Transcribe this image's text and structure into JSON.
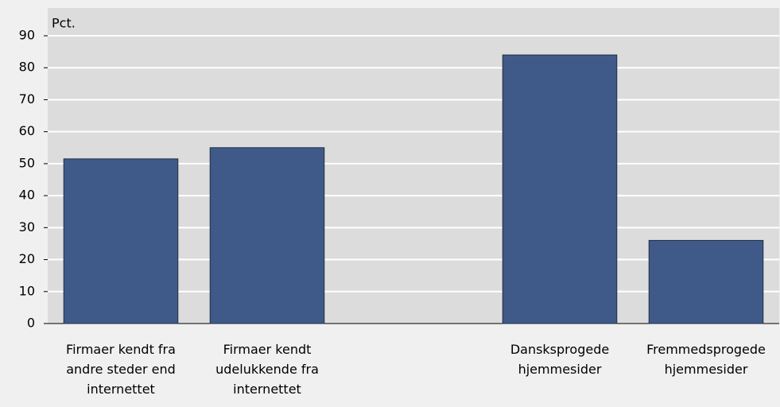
{
  "chart_data": {
    "type": "bar",
    "ylabel": "Pct.",
    "categories": [
      "Firmaer kendt fra andre steder end internettet",
      "Firmaer kendt udelukkende fra internettet",
      null,
      "Dansksprogede hjemmesider",
      "Fremmedsprogede hjemmesider"
    ],
    "values": [
      51.5,
      55,
      null,
      84,
      26
    ],
    "color": "#3f5a88",
    "ylim": [
      0,
      90
    ],
    "yticks": [
      0,
      10,
      20,
      30,
      40,
      50,
      60,
      70,
      80,
      90
    ],
    "grid": true
  }
}
